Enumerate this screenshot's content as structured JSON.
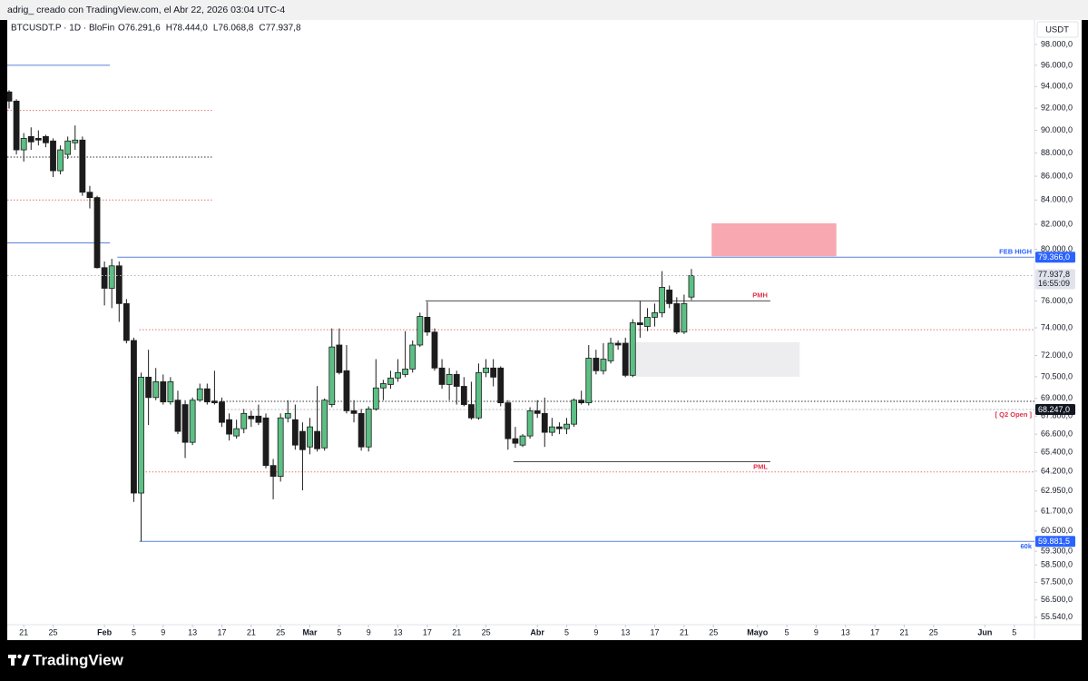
{
  "page": {
    "caption": "adrig_ creado con TradingView.com, el Abr 22, 2026 03:04 UTC-4",
    "brand": "TradingView"
  },
  "chart_data": {
    "type": "candlestick",
    "title": "BTCUSDT.P · 1D · BloFin",
    "ohlc_labels": [
      "O76.291,6",
      "H78.444,0",
      "L76.068,8",
      "C77.937,8"
    ],
    "currency": "USDT",
    "last_price_label": "77.937,8",
    "countdown": "16:55:09",
    "up_color": "#5cbf84",
    "down_color": "#1c1c1c",
    "log_scale": true,
    "x": [
      "2026-01-19",
      "2026-01-20",
      "2026-01-21",
      "2026-01-22",
      "2026-01-23",
      "2026-01-24",
      "2026-01-25",
      "2026-01-26",
      "2026-01-27",
      "2026-01-28",
      "2026-01-29",
      "2026-01-30",
      "2026-01-31",
      "2026-02-01",
      "2026-02-02",
      "2026-02-03",
      "2026-02-04",
      "2026-02-05",
      "2026-02-06",
      "2026-02-07",
      "2026-02-08",
      "2026-02-09",
      "2026-02-10",
      "2026-02-11",
      "2026-02-12",
      "2026-02-13",
      "2026-02-14",
      "2026-02-15",
      "2026-02-16",
      "2026-02-17",
      "2026-02-18",
      "2026-02-19",
      "2026-02-20",
      "2026-02-21",
      "2026-02-22",
      "2026-02-23",
      "2026-02-24",
      "2026-02-25",
      "2026-02-26",
      "2026-02-27",
      "2026-02-28",
      "2026-03-01",
      "2026-03-02",
      "2026-03-03",
      "2026-03-04",
      "2026-03-05",
      "2026-03-06",
      "2026-03-07",
      "2026-03-08",
      "2026-03-09",
      "2026-03-10",
      "2026-03-11",
      "2026-03-12",
      "2026-03-13",
      "2026-03-14",
      "2026-03-15",
      "2026-03-16",
      "2026-03-17",
      "2026-03-18",
      "2026-03-19",
      "2026-03-20",
      "2026-03-21",
      "2026-03-22",
      "2026-03-23",
      "2026-03-24",
      "2026-03-25",
      "2026-03-26",
      "2026-03-27",
      "2026-03-28",
      "2026-03-29",
      "2026-03-30",
      "2026-03-31",
      "2026-04-01",
      "2026-04-02",
      "2026-04-03",
      "2026-04-04",
      "2026-04-05",
      "2026-04-06",
      "2026-04-07",
      "2026-04-08",
      "2026-04-09",
      "2026-04-10",
      "2026-04-11",
      "2026-04-12",
      "2026-04-13",
      "2026-04-14",
      "2026-04-15",
      "2026-04-16",
      "2026-04-17",
      "2026-04-18",
      "2026-04-19",
      "2026-04-20",
      "2026-04-21",
      "2026-04-22"
    ],
    "open": [
      93500,
      92650,
      88280,
      89450,
      89290,
      89450,
      89060,
      86470,
      87880,
      88900,
      89140,
      84650,
      84200,
      78550,
      76960,
      78690,
      75800,
      73080,
      62820,
      70470,
      69060,
      70150,
      68760,
      68880,
      68580,
      66060,
      68880,
      69660,
      68820,
      68760,
      67560,
      66480,
      66960,
      67800,
      67800,
      67680,
      64560,
      63870,
      67680,
      67560,
      66780,
      65760,
      66780,
      65700,
      68580,
      72750,
      70920,
      68160,
      67980,
      65760,
      68280,
      69720,
      69960,
      70410,
      70660,
      71040,
      72750,
      74780,
      73690,
      71110,
      69960,
      70660,
      69830,
      68580,
      67680,
      70790,
      71110,
      71110,
      68700,
      66300,
      65880,
      66480,
      68160,
      67980,
      66720,
      67080,
      66960,
      67260,
      68880,
      68700,
      71810,
      70920,
      71620,
      72880,
      72880,
      70600,
      74370,
      74100,
      74780,
      75120,
      76830,
      75800,
      73690,
      76291.6
    ],
    "high": [
      93670,
      92820,
      89760,
      90270,
      90000,
      89610,
      89290,
      88670,
      89450,
      90440,
      89450,
      85180,
      84350,
      79030,
      79240,
      79030,
      76140,
      73280,
      70790,
      72410,
      71110,
      70660,
      70470,
      69530,
      68880,
      69060,
      70020,
      70020,
      70920,
      69060,
      67980,
      67560,
      68280,
      68160,
      68580,
      67980,
      64980,
      67980,
      68880,
      68580,
      67380,
      67680,
      69850,
      69000,
      73960,
      73960,
      72750,
      68880,
      68280,
      68460,
      71740,
      70280,
      70920,
      71740,
      73760,
      73080,
      75120,
      75930,
      73960,
      71740,
      71110,
      70920,
      70470,
      70150,
      71430,
      71740,
      71740,
      71230,
      68880,
      67080,
      66600,
      68400,
      68880,
      69060,
      67680,
      67380,
      67680,
      69000,
      69530,
      72750,
      72410,
      72880,
      73280,
      73080,
      73280,
      74640,
      76000,
      75460,
      75800,
      78280,
      77170,
      76280,
      76480,
      78444
    ],
    "low": [
      91970,
      87880,
      87260,
      88280,
      88670,
      88510,
      85930,
      86160,
      87490,
      88280,
      84350,
      83300,
      78480,
      75660,
      75460,
      74440,
      72870,
      62270,
      59881.5,
      67200,
      68880,
      68580,
      68580,
      66600,
      65040,
      65880,
      68760,
      68580,
      68580,
      67080,
      66180,
      66300,
      66660,
      67080,
      67200,
      64380,
      62430,
      63540,
      67380,
      65580,
      62990,
      65280,
      65460,
      65520,
      68400,
      70660,
      67980,
      67380,
      65520,
      65460,
      68160,
      68880,
      69660,
      70150,
      70470,
      70790,
      72610,
      73420,
      70920,
      69660,
      68880,
      68580,
      68460,
      67560,
      67560,
      70470,
      69830,
      68460,
      65580,
      65700,
      65760,
      66300,
      67680,
      65760,
      66480,
      66600,
      66600,
      67080,
      68580,
      68520,
      70660,
      70660,
      71430,
      72410,
      70470,
      70470,
      73280,
      73760,
      74100,
      74780,
      75460,
      73550,
      73550,
      76068.8
    ],
    "close": [
      92650,
      88280,
      89290,
      88980,
      89140,
      88900,
      86470,
      88280,
      89060,
      89140,
      84650,
      84200,
      78550,
      76960,
      78690,
      75800,
      73080,
      62820,
      70470,
      69060,
      70150,
      68760,
      70150,
      66780,
      66060,
      68880,
      69660,
      68760,
      68700,
      67380,
      66600,
      66960,
      67980,
      67620,
      67380,
      64560,
      63870,
      67680,
      67980,
      65880,
      65580,
      67080,
      65640,
      68880,
      72610,
      70790,
      68160,
      67980,
      65760,
      68280,
      69720,
      70020,
      70410,
      70790,
      71040,
      72750,
      74840,
      73690,
      71110,
      69960,
      70660,
      69830,
      68580,
      67680,
      70790,
      71110,
      70470,
      68700,
      66300,
      66000,
      66480,
      68160,
      67980,
      66720,
      67080,
      66960,
      67260,
      68880,
      68700,
      71810,
      70920,
      71740,
      72880,
      72750,
      70600,
      74370,
      74230,
      74780,
      75120,
      77030,
      75800,
      73690,
      75800,
      77937.8
    ],
    "xlim": [
      "2026-01-19",
      "2026-06-08"
    ],
    "xticks": [
      {
        "value": "2026-01-21",
        "label": "21"
      },
      {
        "value": "2026-01-25",
        "label": "25"
      },
      {
        "value": "2026-02-01",
        "label": "Feb"
      },
      {
        "value": "2026-02-05",
        "label": "5"
      },
      {
        "value": "2026-02-09",
        "label": "9"
      },
      {
        "value": "2026-02-13",
        "label": "13"
      },
      {
        "value": "2026-02-17",
        "label": "17"
      },
      {
        "value": "2026-02-21",
        "label": "21"
      },
      {
        "value": "2026-02-25",
        "label": "25"
      },
      {
        "value": "2026-03-01",
        "label": "Mar"
      },
      {
        "value": "2026-03-05",
        "label": "5"
      },
      {
        "value": "2026-03-09",
        "label": "9"
      },
      {
        "value": "2026-03-13",
        "label": "13"
      },
      {
        "value": "2026-03-17",
        "label": "17"
      },
      {
        "value": "2026-03-21",
        "label": "21"
      },
      {
        "value": "2026-03-25",
        "label": "25"
      },
      {
        "value": "2026-04-01",
        "label": "Abr"
      },
      {
        "value": "2026-04-05",
        "label": "5"
      },
      {
        "value": "2026-04-09",
        "label": "9"
      },
      {
        "value": "2026-04-13",
        "label": "13"
      },
      {
        "value": "2026-04-17",
        "label": "17"
      },
      {
        "value": "2026-04-21",
        "label": "21"
      },
      {
        "value": "2026-04-25",
        "label": "25"
      },
      {
        "value": "2026-05-01",
        "label": "Mayo"
      },
      {
        "value": "2026-05-05",
        "label": "5"
      },
      {
        "value": "2026-05-09",
        "label": "9"
      },
      {
        "value": "2026-05-13",
        "label": "13"
      },
      {
        "value": "2026-05-17",
        "label": "17"
      },
      {
        "value": "2026-05-21",
        "label": "21"
      },
      {
        "value": "2026-05-25",
        "label": "25"
      },
      {
        "value": "2026-06-01",
        "label": "Jun"
      },
      {
        "value": "2026-06-05",
        "label": "5"
      }
    ],
    "ylim": [
      55135,
      100410
    ],
    "yticks": [
      {
        "value": 98000,
        "label": "98.000,0"
      },
      {
        "value": 96000,
        "label": "96.000,0"
      },
      {
        "value": 94000,
        "label": "94.000,0"
      },
      {
        "value": 92000,
        "label": "92.000,0"
      },
      {
        "value": 90000,
        "label": "90.000,0"
      },
      {
        "value": 88000,
        "label": "88.000,0"
      },
      {
        "value": 86000,
        "label": "86.000,0"
      },
      {
        "value": 84000,
        "label": "84.000,0"
      },
      {
        "value": 82000,
        "label": "82.000,0"
      },
      {
        "value": 80000,
        "label": "80.000,0"
      },
      {
        "value": 76000,
        "label": "76.000,0"
      },
      {
        "value": 74000,
        "label": "74.000,0"
      },
      {
        "value": 72000,
        "label": "72.000,0"
      },
      {
        "value": 70500,
        "label": "70.500,0"
      },
      {
        "value": 69000,
        "label": "69.000,0"
      },
      {
        "value": 67800,
        "label": "67.800,0"
      },
      {
        "value": 66600,
        "label": "66.600,0"
      },
      {
        "value": 65400,
        "label": "65.400,0"
      },
      {
        "value": 64200,
        "label": "64.200,0"
      },
      {
        "value": 62950,
        "label": "62.950,0"
      },
      {
        "value": 61700,
        "label": "61.700,0"
      },
      {
        "value": 60500,
        "label": "60.500,0"
      },
      {
        "value": 59300,
        "label": "59.300,0"
      },
      {
        "value": 58500,
        "label": "58.500,0"
      },
      {
        "value": 57500,
        "label": "57.500,0"
      },
      {
        "value": 56500,
        "label": "56.500,0"
      },
      {
        "value": 55540,
        "label": "55.540,0"
      }
    ],
    "levels": [
      {
        "name": "FEB HIGH",
        "value": 79366,
        "value_label": "79.366,0",
        "start": "2026-02-03",
        "end": "2026-06-08",
        "line_color": "#5b82d9",
        "text_color": "#2962ff",
        "tag_color": "#2962ff",
        "dash": false,
        "label_side": "above"
      },
      {
        "name": "60k",
        "value": 59881.5,
        "value_label": "59.881,5",
        "start": "2026-02-06",
        "end": "2026-06-08",
        "line_color": "#5b82d9",
        "text_color": "#2962ff",
        "tag_color": "#2962ff",
        "dash": false,
        "label_side": "below"
      },
      {
        "name": "[ Q2 Open ]",
        "value": 68247,
        "value_label": "68.247,0",
        "start": "2026-02-17",
        "end": "2026-06-08",
        "line_color": "#b0b3bb",
        "text_color": "#e0314b",
        "tag_color": "#131722",
        "dash": true,
        "label_side": "below"
      },
      {
        "name": "PMH",
        "value": 76000,
        "start": "2026-03-17",
        "end": "2026-05-03",
        "line_color": "#4a4a4a",
        "text_color": "#e0314b",
        "dash": false,
        "label_side": "above"
      },
      {
        "name": "PML",
        "value": 64800,
        "start": "2026-03-29",
        "end": "2026-05-03",
        "line_color": "#4a4a4a",
        "text_color": "#e0314b",
        "dash": false,
        "label_side": "below"
      }
    ],
    "lines": [
      {
        "value": 96000,
        "start": "2026-01-19",
        "end": "2026-02-02",
        "color": "#5b82d9",
        "dash": false
      },
      {
        "value": 80500,
        "start": "2026-01-19",
        "end": "2026-02-02",
        "color": "#5b82d9",
        "dash": false
      },
      {
        "value": 91800,
        "start": "2026-01-19",
        "end": "2026-02-16",
        "color": "#e57373",
        "dash": true
      },
      {
        "value": 87650,
        "start": "2026-01-19",
        "end": "2026-02-16",
        "color": "#333333",
        "dash": true
      },
      {
        "value": 84000,
        "start": "2026-01-19",
        "end": "2026-02-16",
        "color": "#e57373",
        "dash": true
      },
      {
        "value": 73860,
        "start": "2026-02-06",
        "end": "2026-06-08",
        "color": "#e57373",
        "dash": true
      },
      {
        "value": 64150,
        "start": "2026-02-06",
        "end": "2026-06-08",
        "color": "#e57373",
        "dash": true
      },
      {
        "value": 68800,
        "start": "2026-02-17",
        "end": "2026-06-08",
        "color": "#333333",
        "dash": true
      }
    ],
    "zones": [
      {
        "top": 82080,
        "bottom": 79440,
        "start": "2026-04-25",
        "end": "2026-05-12",
        "color": "#f7a8b0"
      },
      {
        "top": 72950,
        "bottom": 70500,
        "start": "2026-04-13",
        "end": "2026-05-07",
        "color": "#ededf0"
      }
    ]
  }
}
